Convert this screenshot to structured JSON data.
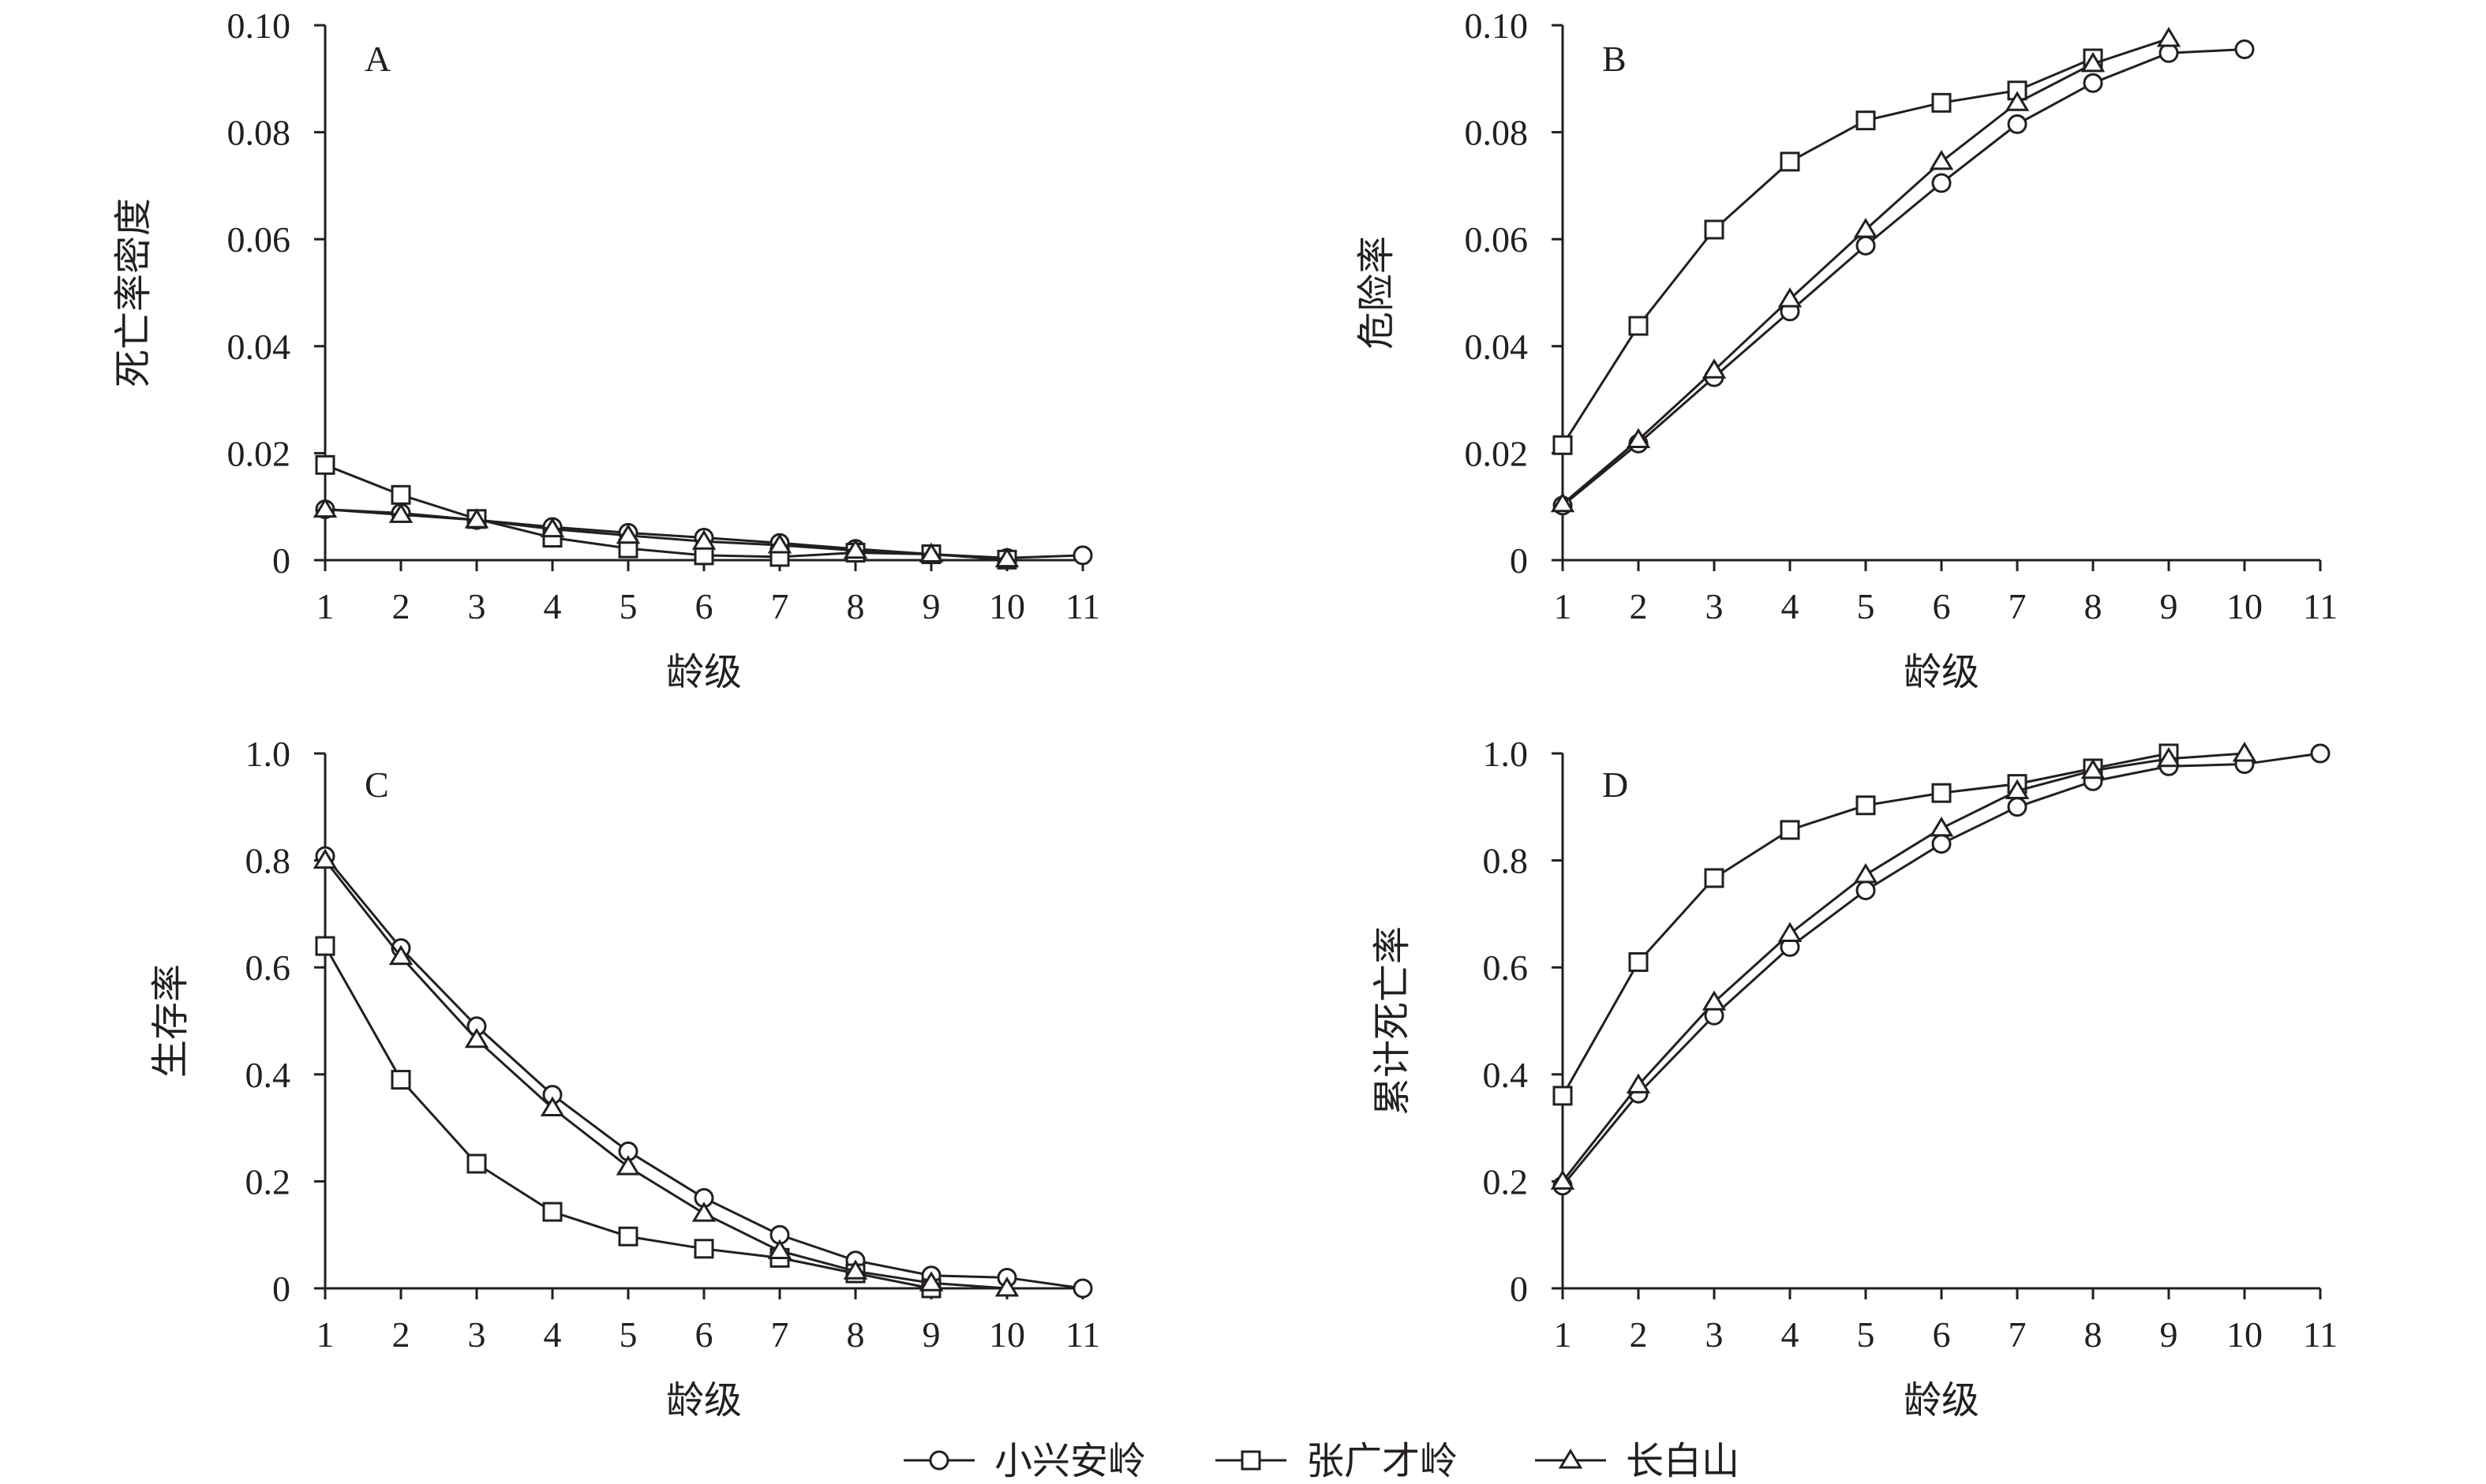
{
  "chart_data": [
    {
      "type": "line",
      "panel_label": "A",
      "xlabel": "龄级",
      "ylabel": "死亡率密度",
      "x": [
        1,
        2,
        3,
        4,
        5,
        6,
        7,
        8,
        9,
        10,
        11
      ],
      "xlim": [
        1,
        11
      ],
      "ylim": [
        0,
        0.1
      ],
      "xticks": [
        "1",
        "2",
        "3",
        "4",
        "5",
        "6",
        "7",
        "8",
        "9",
        "10",
        "11"
      ],
      "yticks": [
        "0",
        "0.02",
        "0.04",
        "0.06",
        "0.08",
        "0.10"
      ],
      "ytick_values": [
        0,
        0.02,
        0.04,
        0.06,
        0.08,
        0.1
      ],
      "grid": false,
      "series": [
        {
          "name": "小兴安岭",
          "marker": "circle",
          "values": [
            0.0095,
            0.0088,
            0.0075,
            0.0062,
            0.0051,
            0.0042,
            0.0032,
            0.0021,
            0.0011,
            0.0004,
            0.0009
          ]
        },
        {
          "name": "张广才岭",
          "marker": "square",
          "values": [
            0.0178,
            0.0122,
            0.0077,
            0.0042,
            0.0022,
            0.0009,
            0.0006,
            0.0014,
            0.0011,
            0.0001,
            null
          ]
        },
        {
          "name": "长白山",
          "marker": "triangle",
          "values": [
            0.0095,
            0.0085,
            0.0075,
            0.0058,
            0.0046,
            0.0035,
            0.0028,
            0.0018,
            0.0011,
            0.0002,
            null
          ]
        }
      ]
    },
    {
      "type": "line",
      "panel_label": "B",
      "xlabel": "龄级",
      "ylabel": "危险率",
      "x": [
        1,
        2,
        3,
        4,
        5,
        6,
        7,
        8,
        9,
        10,
        11
      ],
      "xlim": [
        1,
        11
      ],
      "ylim": [
        0,
        0.1
      ],
      "xticks": [
        "1",
        "2",
        "3",
        "4",
        "5",
        "6",
        "7",
        "8",
        "9",
        "10",
        "11"
      ],
      "yticks": [
        "0",
        "0.02",
        "0.04",
        "0.06",
        "0.08",
        "0.10"
      ],
      "ytick_values": [
        0,
        0.02,
        0.04,
        0.06,
        0.08,
        0.1
      ],
      "grid": false,
      "series": [
        {
          "name": "小兴安岭",
          "marker": "circle",
          "values": [
            0.0102,
            0.0218,
            0.0342,
            0.0465,
            0.0588,
            0.0705,
            0.0815,
            0.0892,
            0.0948,
            0.0955,
            null
          ]
        },
        {
          "name": "张广才岭",
          "marker": "square",
          "values": [
            0.0215,
            0.0438,
            0.0618,
            0.0745,
            0.0822,
            0.0855,
            0.0878,
            0.0938,
            null,
            null,
            null
          ]
        },
        {
          "name": "长白山",
          "marker": "triangle",
          "values": [
            0.0105,
            0.0225,
            0.0355,
            0.0488,
            0.0618,
            0.0745,
            0.0855,
            0.0928,
            0.0975,
            null,
            null
          ]
        }
      ]
    },
    {
      "type": "line",
      "panel_label": "C",
      "xlabel": "龄级",
      "ylabel": "生存率",
      "x": [
        1,
        2,
        3,
        4,
        5,
        6,
        7,
        8,
        9,
        10,
        11
      ],
      "xlim": [
        1,
        11
      ],
      "ylim": [
        0,
        1.0
      ],
      "xticks": [
        "1",
        "2",
        "3",
        "4",
        "5",
        "6",
        "7",
        "8",
        "9",
        "10",
        "11"
      ],
      "yticks": [
        "0",
        "0.2",
        "0.4",
        "0.6",
        "0.8",
        "1.0"
      ],
      "ytick_values": [
        0,
        0.2,
        0.4,
        0.6,
        0.8,
        1.0
      ],
      "grid": false,
      "series": [
        {
          "name": "小兴安岭",
          "marker": "circle",
          "values": [
            0.808,
            0.636,
            0.49,
            0.362,
            0.256,
            0.169,
            0.1,
            0.052,
            0.024,
            0.02,
            0.0
          ]
        },
        {
          "name": "张广才岭",
          "marker": "square",
          "values": [
            0.64,
            0.39,
            0.233,
            0.143,
            0.097,
            0.074,
            0.057,
            0.028,
            0.0,
            null,
            null
          ]
        },
        {
          "name": "长白山",
          "marker": "triangle",
          "values": [
            0.8,
            0.62,
            0.465,
            0.337,
            0.227,
            0.14,
            0.07,
            0.032,
            0.01,
            0.0,
            null
          ]
        }
      ]
    },
    {
      "type": "line",
      "panel_label": "D",
      "xlabel": "龄级",
      "ylabel": "累计死亡率",
      "x": [
        1,
        2,
        3,
        4,
        5,
        6,
        7,
        8,
        9,
        10,
        11
      ],
      "xlim": [
        1,
        11
      ],
      "ylim": [
        0,
        1.0
      ],
      "xticks": [
        "1",
        "2",
        "3",
        "4",
        "5",
        "6",
        "7",
        "8",
        "9",
        "10",
        "11"
      ],
      "yticks": [
        "0",
        "0.2",
        "0.4",
        "0.6",
        "0.8",
        "1.0"
      ],
      "ytick_values": [
        0,
        0.2,
        0.4,
        0.6,
        0.8,
        1.0
      ],
      "grid": false,
      "series": [
        {
          "name": "小兴安岭",
          "marker": "circle",
          "values": [
            0.192,
            0.364,
            0.51,
            0.638,
            0.744,
            0.831,
            0.9,
            0.948,
            0.976,
            0.98,
            1.0
          ]
        },
        {
          "name": "张广才岭",
          "marker": "square",
          "values": [
            0.36,
            0.61,
            0.767,
            0.857,
            0.903,
            0.926,
            0.943,
            0.972,
            1.0,
            null,
            null
          ]
        },
        {
          "name": "长白山",
          "marker": "triangle",
          "values": [
            0.2,
            0.38,
            0.535,
            0.663,
            0.773,
            0.86,
            0.93,
            0.968,
            0.99,
            1.0,
            null
          ]
        }
      ]
    }
  ],
  "legend": {
    "position": "bottom-center",
    "items": [
      {
        "name": "小兴安岭",
        "marker": "circle"
      },
      {
        "name": "张广才岭",
        "marker": "square"
      },
      {
        "name": "长白山",
        "marker": "triangle"
      }
    ]
  },
  "colors": {
    "line": "#231f20",
    "marker_fill": "#ffffff",
    "background": "#ffffff"
  }
}
